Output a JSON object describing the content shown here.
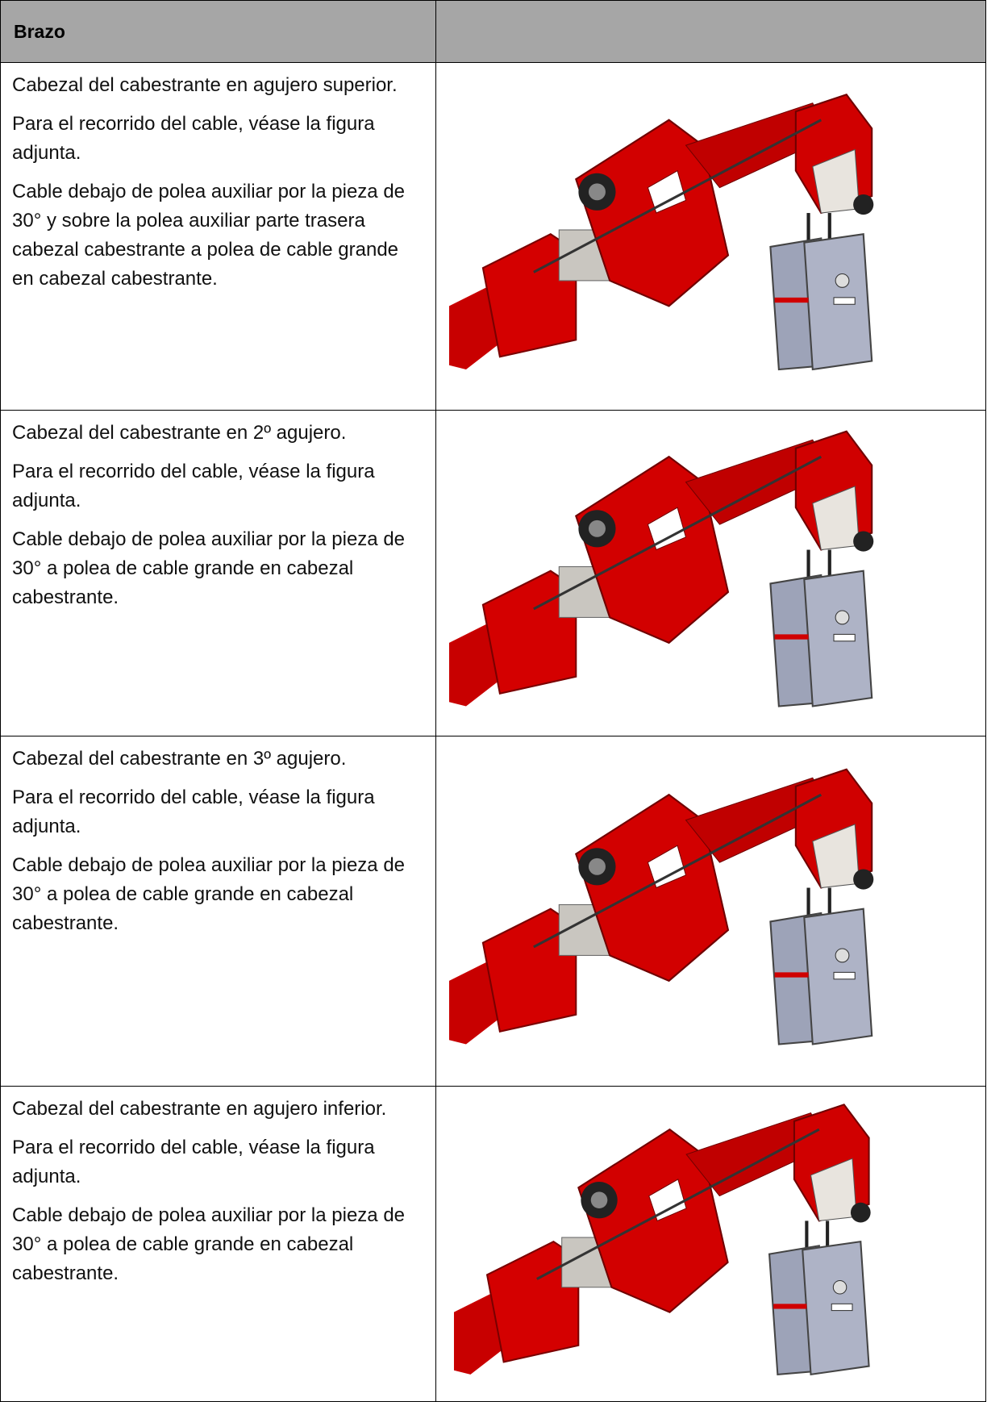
{
  "header": {
    "title": "Brazo"
  },
  "rows": [
    {
      "paragraphs": [
        "Cabezal del cabestrante en agujero superior.",
        "Para el recorrido del cable, véase la figura adjunta.",
        "Cable debajo de polea auxiliar por la pieza de 30° y sobre la polea auxiliar parte trasera cabezal cabestrante a polea de cable grande en cabezal cabestrante."
      ]
    },
    {
      "paragraphs": [
        "Cabezal del cabestrante en 2º agujero.",
        "Para el recorrido del cable, véase la figura adjunta.",
        "Cable debajo de polea auxiliar por la pieza de 30° a polea de cable grande en cabezal cabestrante."
      ]
    },
    {
      "paragraphs": [
        "Cabezal del cabestrante en 3º agujero.",
        "Para el recorrido del cable, véase la figura adjunta.",
        "Cable debajo de polea auxiliar por la pieza de 30° a polea de cable grande en cabezal cabestrante."
      ]
    },
    {
      "paragraphs": [
        "Cabezal del cabestrante en agujero inferior.",
        "Para el recorrido del cable, véase la figura adjunta.",
        "Cable debajo de polea auxiliar por la pieza de 30° a polea de cable grande en cabezal cabestrante."
      ]
    }
  ]
}
